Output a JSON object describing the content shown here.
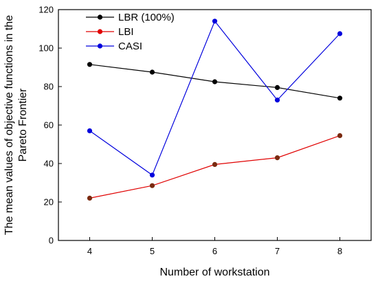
{
  "chart_data": {
    "type": "line",
    "title": "",
    "xlabel": "Number of workstation",
    "ylabel_lines": [
      "The mean values of objective functions in the",
      "Pareto Frontier"
    ],
    "x": [
      4,
      5,
      6,
      7,
      8
    ],
    "xlim": [
      3.5,
      8.5
    ],
    "ylim": [
      0,
      120
    ],
    "x_ticks": [
      4,
      5,
      6,
      7,
      8
    ],
    "y_ticks": [
      0,
      20,
      40,
      60,
      80,
      100,
      120
    ],
    "grid": false,
    "legend_position": "top-left",
    "series": [
      {
        "name": "LBR (100%)",
        "color": "#000000",
        "values": [
          91.5,
          87.5,
          82.5,
          79.5,
          74
        ]
      },
      {
        "name": "LBI",
        "color": "#e00000",
        "marker_color": "#7a2a10",
        "values": [
          22,
          28.5,
          39.5,
          43,
          54.5
        ]
      },
      {
        "name": "CASI",
        "color": "#0000dd",
        "values": [
          57,
          34,
          114,
          73,
          107.5
        ]
      }
    ]
  }
}
